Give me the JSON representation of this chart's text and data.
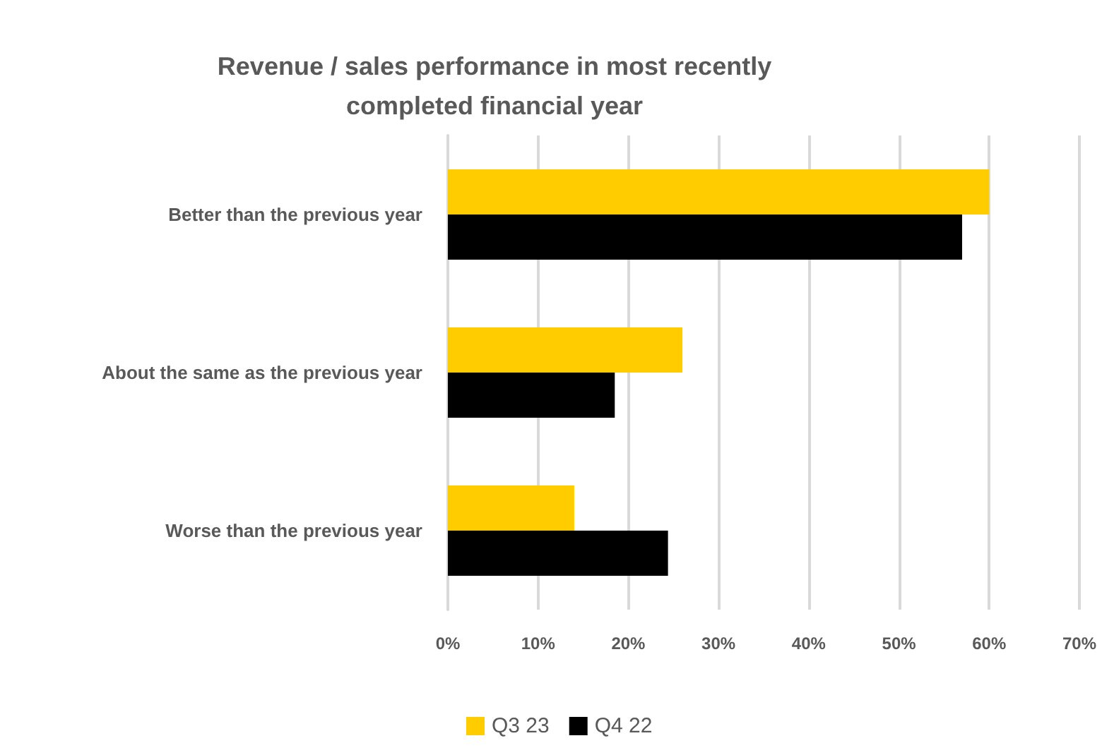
{
  "chart_data": {
    "type": "bar",
    "orientation": "horizontal",
    "title": "Revenue / sales performance in most recently\ncompleted financial year",
    "categories": [
      "Better than the previous year",
      "About the same as the previous year",
      "Worse than the previous year"
    ],
    "series": [
      {
        "name": "Q3 23",
        "color": "#ffcc00",
        "values": [
          60,
          26,
          14
        ]
      },
      {
        "name": "Q4 22",
        "color": "#000000",
        "values": [
          57,
          18.5,
          24.4
        ]
      }
    ],
    "xlim": [
      0,
      70
    ],
    "xticks": [
      {
        "value": 0,
        "label": "0%"
      },
      {
        "value": 10,
        "label": "10%"
      },
      {
        "value": 20,
        "label": "20%"
      },
      {
        "value": 30,
        "label": "30%"
      },
      {
        "value": 40,
        "label": "40%"
      },
      {
        "value": 50,
        "label": "50%"
      },
      {
        "value": 60,
        "label": "60%"
      },
      {
        "value": 70,
        "label": "70%"
      }
    ],
    "grid": "x",
    "legend": "bottom"
  }
}
